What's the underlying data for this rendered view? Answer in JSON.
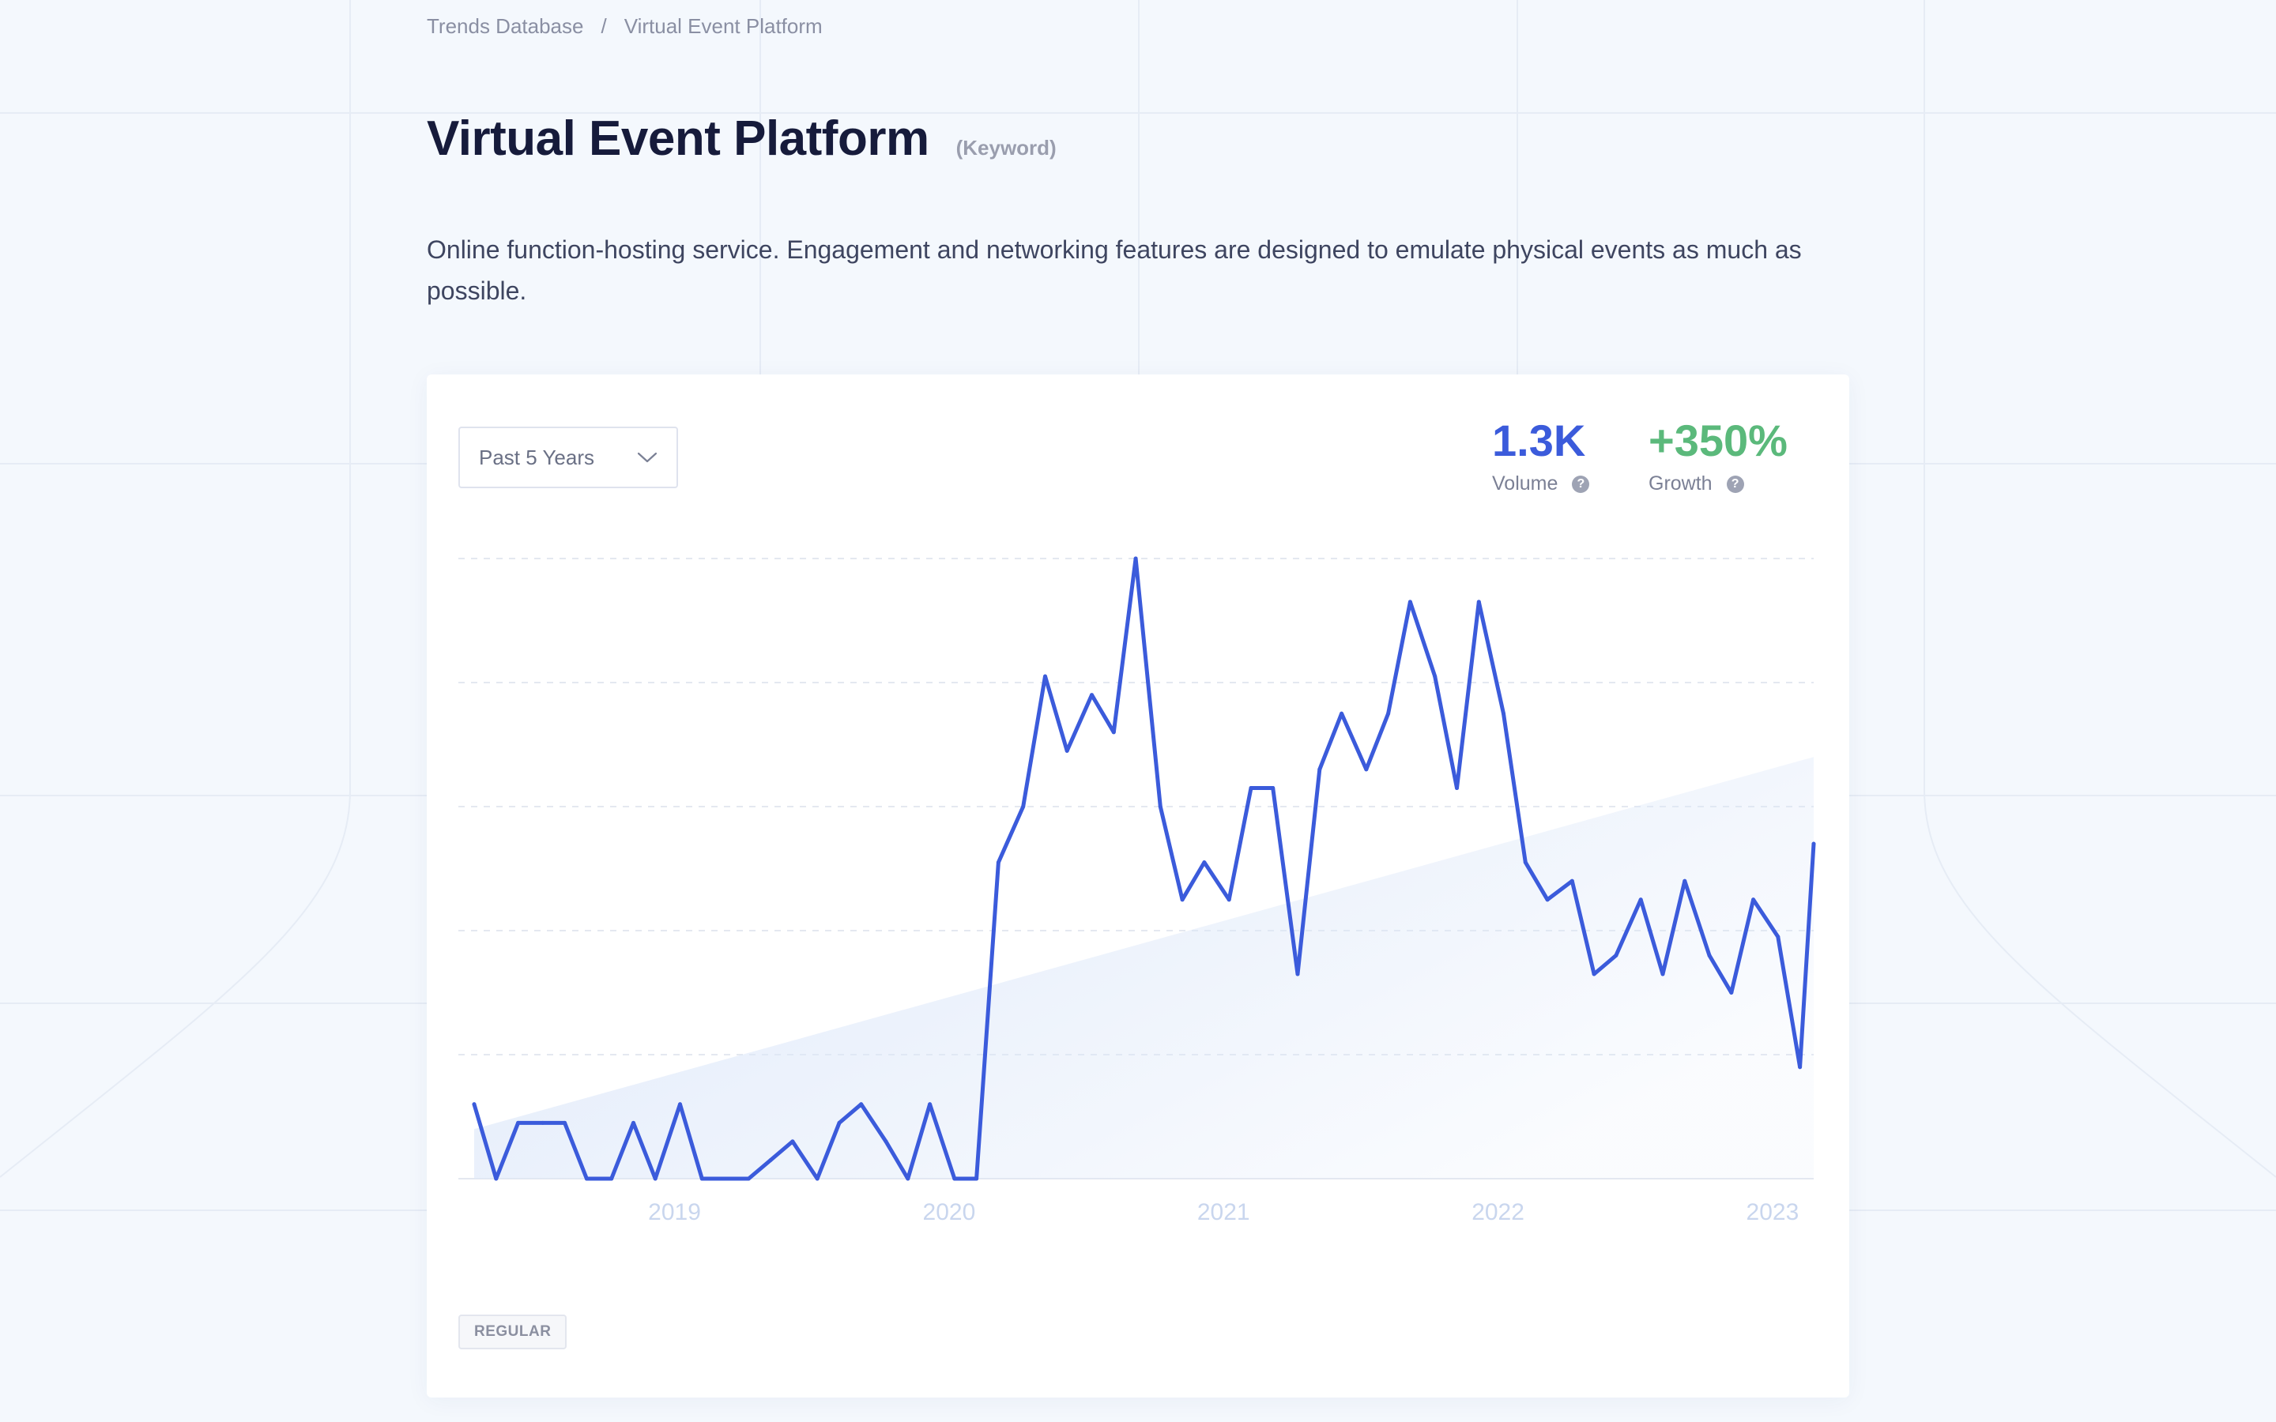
{
  "breadcrumb": {
    "root": "Trends Database",
    "separator": "/",
    "current": "Virtual Event Platform"
  },
  "header": {
    "title": "Virtual Event Platform",
    "tag": "(Keyword)"
  },
  "description": "Online function-hosting service. Engagement and networking features are designed to emulate physical events as much as possible.",
  "range_select": {
    "value": "Past 5 Years",
    "icon": "chevron-down-icon"
  },
  "stats": {
    "volume": {
      "value": "1.3K",
      "label": "Volume"
    },
    "growth": {
      "value": "+350%",
      "label": "Growth"
    }
  },
  "badge": "REGULAR",
  "colors": {
    "line": "#3b5bdb",
    "volume": "#3b5bdb",
    "growth": "#5bb97b",
    "trend_fill": "#dce7f9",
    "axis_label": "#c9d6ee"
  },
  "chart_data": {
    "type": "line",
    "title": "",
    "xlabel": "",
    "ylabel": "",
    "x_tick_labels": [
      "2019",
      "2020",
      "2021",
      "2022",
      "2023"
    ],
    "x_range": [
      2018.27,
      2023.15
    ],
    "ylim": [
      0,
      100
    ],
    "grid": true,
    "series": [
      {
        "x": [
          2018.27,
          2018.35,
          2018.43,
          2018.52,
          2018.6,
          2018.68,
          2018.77,
          2018.85,
          2018.93,
          2019.02,
          2019.1,
          2019.18,
          2019.27,
          2019.35,
          2019.43,
          2019.52,
          2019.6,
          2019.68,
          2019.77,
          2019.85,
          2019.93,
          2020.02,
          2020.1,
          2020.18,
          2020.27,
          2020.35,
          2020.43,
          2020.52,
          2020.6,
          2020.68,
          2020.77,
          2020.85,
          2020.93,
          2021.02,
          2021.1,
          2021.18,
          2021.27,
          2021.35,
          2021.43,
          2021.52,
          2021.6,
          2021.68,
          2021.77,
          2021.85,
          2021.93,
          2022.02,
          2022.1,
          2022.18,
          2022.27,
          2022.35,
          2022.43,
          2022.52,
          2022.6,
          2022.68,
          2022.77,
          2022.85,
          2022.93,
          2023.02,
          2023.1,
          2023.15
        ],
        "values": [
          12,
          0,
          9,
          9,
          9,
          0,
          0,
          9,
          0,
          12,
          0,
          0,
          0,
          3,
          6,
          0,
          9,
          12,
          6,
          0,
          12,
          0,
          0,
          51,
          60,
          81,
          69,
          78,
          72,
          100,
          60,
          45,
          51,
          45,
          63,
          63,
          33,
          66,
          75,
          66,
          75,
          93,
          81,
          63,
          93,
          75,
          51,
          45,
          48,
          33,
          36,
          45,
          33,
          48,
          36,
          30,
          45,
          39,
          18,
          54
        ]
      }
    ],
    "trend": {
      "start": 8,
      "end": 68
    }
  }
}
